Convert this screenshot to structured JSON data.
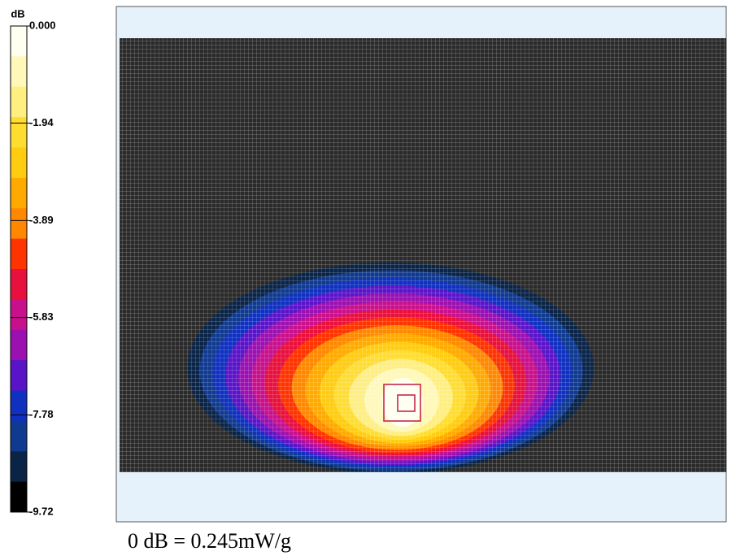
{
  "chart_data": {
    "type": "heatmap",
    "colorbar_label": "dB",
    "zlim": [
      -9.72,
      0
    ],
    "zticks": [
      {
        "value": 0,
        "label": "0.000"
      },
      -1.94,
      -3.89,
      -5.83,
      -7.78,
      -9.72
    ],
    "colors": [
      "#fffff0",
      "#fff8b8",
      "#ffee80",
      "#ffdd30",
      "#ffcc10",
      "#ffaa00",
      "#ff8800",
      "#ff3300",
      "#e8103c",
      "#c8108c",
      "#9a10b0",
      "#5a14c8",
      "#1030c0",
      "#103a90",
      "#0a2448",
      "#000000"
    ],
    "caption": "0 dB = 0.245mW/g"
  }
}
